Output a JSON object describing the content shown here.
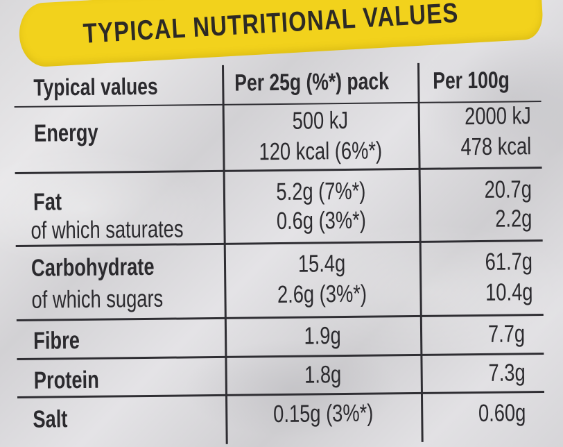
{
  "title": "TYPICAL NUTRITIONAL VALUES",
  "colors": {
    "banner": "#f2d21c",
    "text": "#2b2a2e",
    "background": "#dcdbde"
  },
  "headers": {
    "nutrient": "Typical values",
    "per_pack": "Per 25g (%*) pack",
    "per_100g": "Per 100g"
  },
  "rows": {
    "energy": {
      "label": "Energy",
      "pack_line1": "500 kJ",
      "pack_line2": "120 kcal (6%*)",
      "g100_line1": "2000 kJ",
      "g100_line2": "478 kcal"
    },
    "fat": {
      "label": "Fat",
      "sub_label": "of which saturates",
      "pack_line1": "5.2g (7%*)",
      "pack_line2": "0.6g (3%*)",
      "g100_line1": "20.7g",
      "g100_line2": "2.2g"
    },
    "carbohydrate": {
      "label": "Carbohydrate",
      "sub_label": "of which sugars",
      "pack_line1": "15.4g",
      "pack_line2": "2.6g (3%*)",
      "g100_line1": "61.7g",
      "g100_line2": "10.4g"
    },
    "fibre": {
      "label": "Fibre",
      "pack": "1.9g",
      "g100": "7.7g"
    },
    "protein": {
      "label": "Protein",
      "pack": "1.8g",
      "g100": "7.3g"
    },
    "salt": {
      "label": "Salt",
      "pack": "0.15g (3%*)",
      "g100": "0.60g"
    }
  }
}
